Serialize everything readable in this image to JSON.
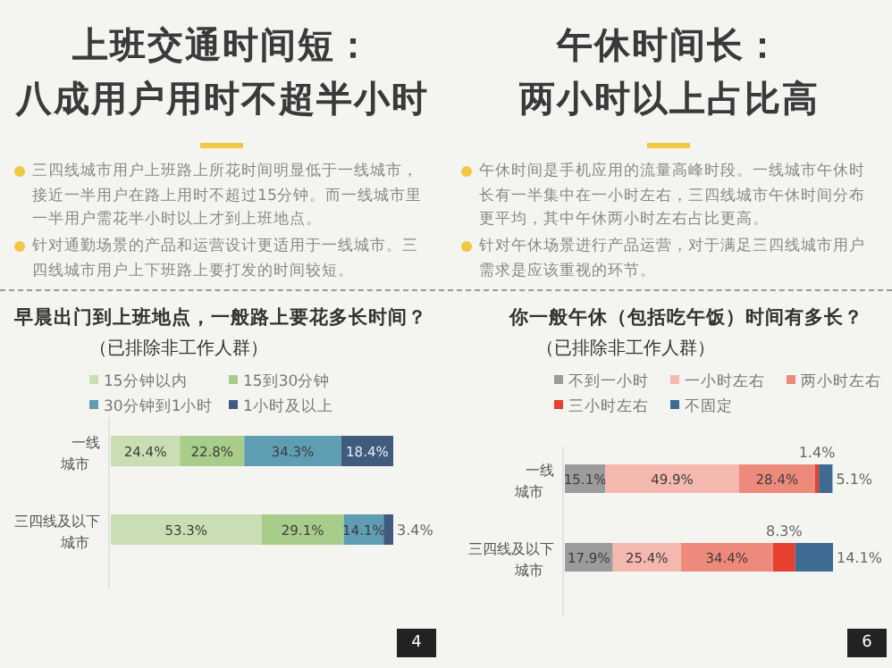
{
  "chart_data": [
    {
      "type": "bar",
      "orientation": "horizontal",
      "stacked": true,
      "legend": "top",
      "title": "早晨出门到上班地点，一般路上要花多长时间？",
      "subtitle": "（已排除非工作人群）",
      "categories": [
        "一线城市",
        "三四线及以下城市"
      ],
      "series": [
        {
          "name": "15分钟以内",
          "color": "#c9dfb3",
          "values": [
            24.4,
            53.3
          ],
          "value_labels": [
            "24.4%",
            "53.3%"
          ]
        },
        {
          "name": "15到30分钟",
          "color": "#a8cd8a",
          "values": [
            22.8,
            29.1
          ],
          "value_labels": [
            "22.8%",
            "29.1%"
          ]
        },
        {
          "name": "30分钟到1小时",
          "color": "#5f9db3",
          "values": [
            34.3,
            14.1
          ],
          "value_labels": [
            "34.3%",
            "14.1%"
          ]
        },
        {
          "name": "1小时及以上",
          "color": "#3f5c7e",
          "values": [
            18.4,
            3.4
          ],
          "value_labels": [
            "18.4%",
            "3.4%"
          ]
        }
      ],
      "annotations": [
        "上班交通时间短：",
        "八成用户用时不超半小时",
        "三四线城市用户上班路上所花时间明显低于一线城市，接近一半用户在路上用时不超过15分钟。而一线城市里一半用户需花半小时以上才到上班地点。",
        "针对通勤场景的产品和运营设计更适用于一线城市。三四线城市用户上下班路上要打发的时间较短。",
        "4"
      ]
    },
    {
      "type": "bar",
      "orientation": "horizontal",
      "stacked": true,
      "legend": "top",
      "title": "你一般午休（包括吃午饭）时间有多长？",
      "subtitle": "（已排除非工作人群）",
      "categories": [
        "一线城市",
        "三四线及以下城市"
      ],
      "series": [
        {
          "name": "不到一小时",
          "color": "#9b9b9b",
          "values": [
            15.1,
            17.9
          ],
          "value_labels": [
            "15.1%",
            "17.9%"
          ]
        },
        {
          "name": "一小时左右",
          "color": "#f5b8ae",
          "values": [
            49.9,
            25.4
          ],
          "value_labels": [
            "49.9%",
            "25.4%"
          ]
        },
        {
          "name": "两小时左右",
          "color": "#ee8a7c",
          "values": [
            28.4,
            34.4
          ],
          "value_labels": [
            "28.4%",
            "34.4%"
          ]
        },
        {
          "name": "三小时左右",
          "color": "#e8402e",
          "values": [
            1.4,
            8.3
          ],
          "value_labels": [
            "1.4%",
            "8.3%"
          ]
        },
        {
          "name": "不固定",
          "color": "#3f6a91",
          "values": [
            5.1,
            14.1
          ],
          "value_labels": [
            "5.1%",
            "14.1%"
          ]
        }
      ],
      "annotations": [
        "午休时间长：",
        "两小时以上占比高",
        "午休时间是手机应用的流量高峰时段。一线城市午休时长有一半集中在一小时左右，三四线城市午休时间分布更平均，其中午休两小时左右占比更高。",
        "针对午休场景进行产品运营，对于满足三四线城市用户需求是应该重视的环节。",
        "6"
      ]
    }
  ]
}
